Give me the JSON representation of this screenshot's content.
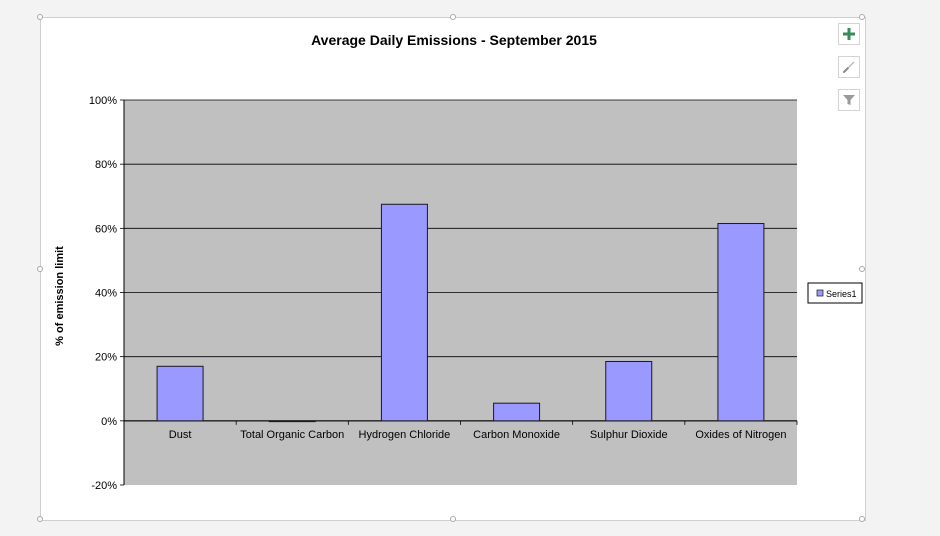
{
  "chart_data": {
    "type": "bar",
    "title": "Average Daily Emissions - September 2015",
    "xlabel": "",
    "ylabel": "% of emission limit",
    "categories": [
      "Dust",
      "Total Organic Carbon",
      "Hydrogen Chloride",
      "Carbon Monoxide",
      "Sulphur Dioxide",
      "Oxides of Nitrogen"
    ],
    "series": [
      {
        "name": "Series1",
        "values": [
          17,
          0,
          67.5,
          5.5,
          18.5,
          61.5
        ]
      }
    ],
    "ylim": [
      -20,
      100
    ],
    "yticks": [
      -20,
      0,
      20,
      40,
      60,
      80,
      100
    ],
    "ytick_labels": [
      "-20%",
      "0%",
      "20%",
      "40%",
      "60%",
      "80%",
      "100%"
    ],
    "grid": true,
    "legend_position": "right",
    "colors": {
      "bar_fill": "#9999ff",
      "bar_stroke": "#1a1a1a",
      "plot_background": "#c0c0c0"
    }
  },
  "tools": {
    "add_icon": "plus-icon",
    "style_icon": "brush-icon",
    "filter_icon": "filter-icon"
  }
}
